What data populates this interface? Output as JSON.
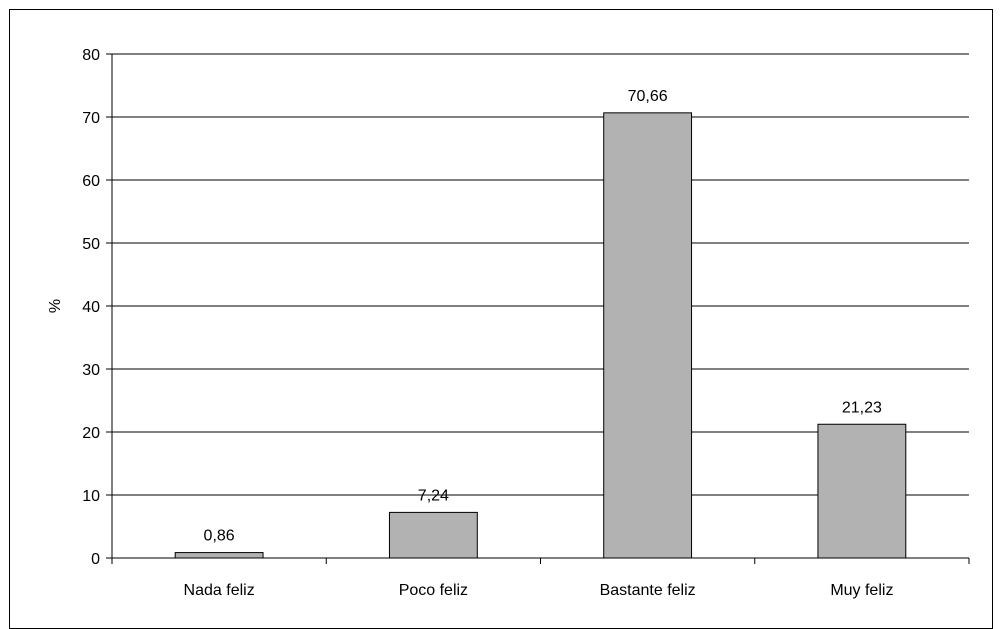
{
  "chart_data": {
    "type": "bar",
    "title": "",
    "xlabel": "",
    "ylabel": "%",
    "categories": [
      "Nada feliz",
      "Poco feliz",
      "Bastante feliz",
      "Muy feliz"
    ],
    "values": [
      0.86,
      7.24,
      70.66,
      21.23
    ],
    "value_labels": [
      "0,86",
      "7,24",
      "70,66",
      "21,23"
    ],
    "ylim": [
      0,
      80
    ],
    "yticks": [
      0,
      10,
      20,
      30,
      40,
      50,
      60,
      70,
      80
    ],
    "grid": true,
    "legend": "none",
    "colors": {
      "bar_fill": "#b2b2b2",
      "bar_stroke": "#000000",
      "gridline": "#000000",
      "background": "#ffffff"
    }
  }
}
